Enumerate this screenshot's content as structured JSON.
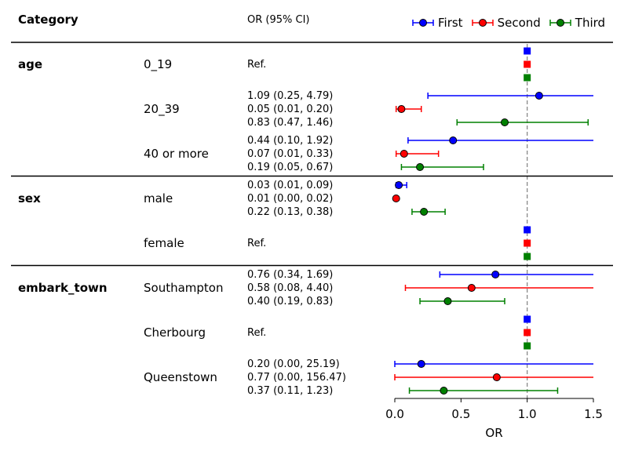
{
  "header": {
    "category": "Category",
    "or_ci": "OR (95% CI)"
  },
  "legend": [
    {
      "name": "First",
      "color": "#0000ff"
    },
    {
      "name": "Second",
      "color": "#ff0000"
    },
    {
      "name": "Third",
      "color": "#008000"
    }
  ],
  "chart_data": {
    "type": "forest",
    "xlabel": "OR",
    "xlim": [
      0,
      1.5
    ],
    "xticks": [
      "0.0",
      "0.5",
      "1.0",
      "1.5"
    ],
    "reference_line": 1.0,
    "series": [
      "First",
      "Second",
      "Third"
    ],
    "groups": [
      {
        "category": "age",
        "levels": [
          {
            "level": "0_19",
            "ref": true,
            "ref_label": "Ref."
          },
          {
            "level": "20_39",
            "ref": false,
            "rows": [
              {
                "text": "1.09 (0.25, 4.79)",
                "or": 1.09,
                "lo": 0.25,
                "hi": 4.79
              },
              {
                "text": "0.05 (0.01, 0.20)",
                "or": 0.05,
                "lo": 0.01,
                "hi": 0.2
              },
              {
                "text": "0.83 (0.47, 1.46)",
                "or": 0.83,
                "lo": 0.47,
                "hi": 1.46
              }
            ]
          },
          {
            "level": "40 or more",
            "ref": false,
            "rows": [
              {
                "text": "0.44 (0.10, 1.92)",
                "or": 0.44,
                "lo": 0.1,
                "hi": 1.92
              },
              {
                "text": "0.07 (0.01, 0.33)",
                "or": 0.07,
                "lo": 0.01,
                "hi": 0.33
              },
              {
                "text": "0.19 (0.05, 0.67)",
                "or": 0.19,
                "lo": 0.05,
                "hi": 0.67
              }
            ]
          }
        ]
      },
      {
        "category": "sex",
        "levels": [
          {
            "level": "male",
            "ref": false,
            "rows": [
              {
                "text": "0.03 (0.01, 0.09)",
                "or": 0.03,
                "lo": 0.01,
                "hi": 0.09
              },
              {
                "text": "0.01 (0.00, 0.02)",
                "or": 0.01,
                "lo": 0.0,
                "hi": 0.02
              },
              {
                "text": "0.22 (0.13, 0.38)",
                "or": 0.22,
                "lo": 0.13,
                "hi": 0.38
              }
            ]
          },
          {
            "level": "female",
            "ref": true,
            "ref_label": "Ref."
          }
        ]
      },
      {
        "category": "embark_town",
        "levels": [
          {
            "level": "Southampton",
            "ref": false,
            "rows": [
              {
                "text": "0.76 (0.34, 1.69)",
                "or": 0.76,
                "lo": 0.34,
                "hi": 1.69
              },
              {
                "text": "0.58 (0.08, 4.40)",
                "or": 0.58,
                "lo": 0.08,
                "hi": 4.4
              },
              {
                "text": "0.40 (0.19, 0.83)",
                "or": 0.4,
                "lo": 0.19,
                "hi": 0.83
              }
            ]
          },
          {
            "level": "Cherbourg",
            "ref": true,
            "ref_label": "Ref."
          },
          {
            "level": "Queenstown",
            "ref": false,
            "rows": [
              {
                "text": "0.20 (0.00, 25.19)",
                "or": 0.2,
                "lo": 0.0,
                "hi": 25.19
              },
              {
                "text": "0.77 (0.00, 156.47)",
                "or": 0.77,
                "lo": 0.0,
                "hi": 156.47
              },
              {
                "text": "0.37 (0.11, 1.23)",
                "or": 0.37,
                "lo": 0.11,
                "hi": 1.23
              }
            ]
          }
        ]
      }
    ]
  }
}
